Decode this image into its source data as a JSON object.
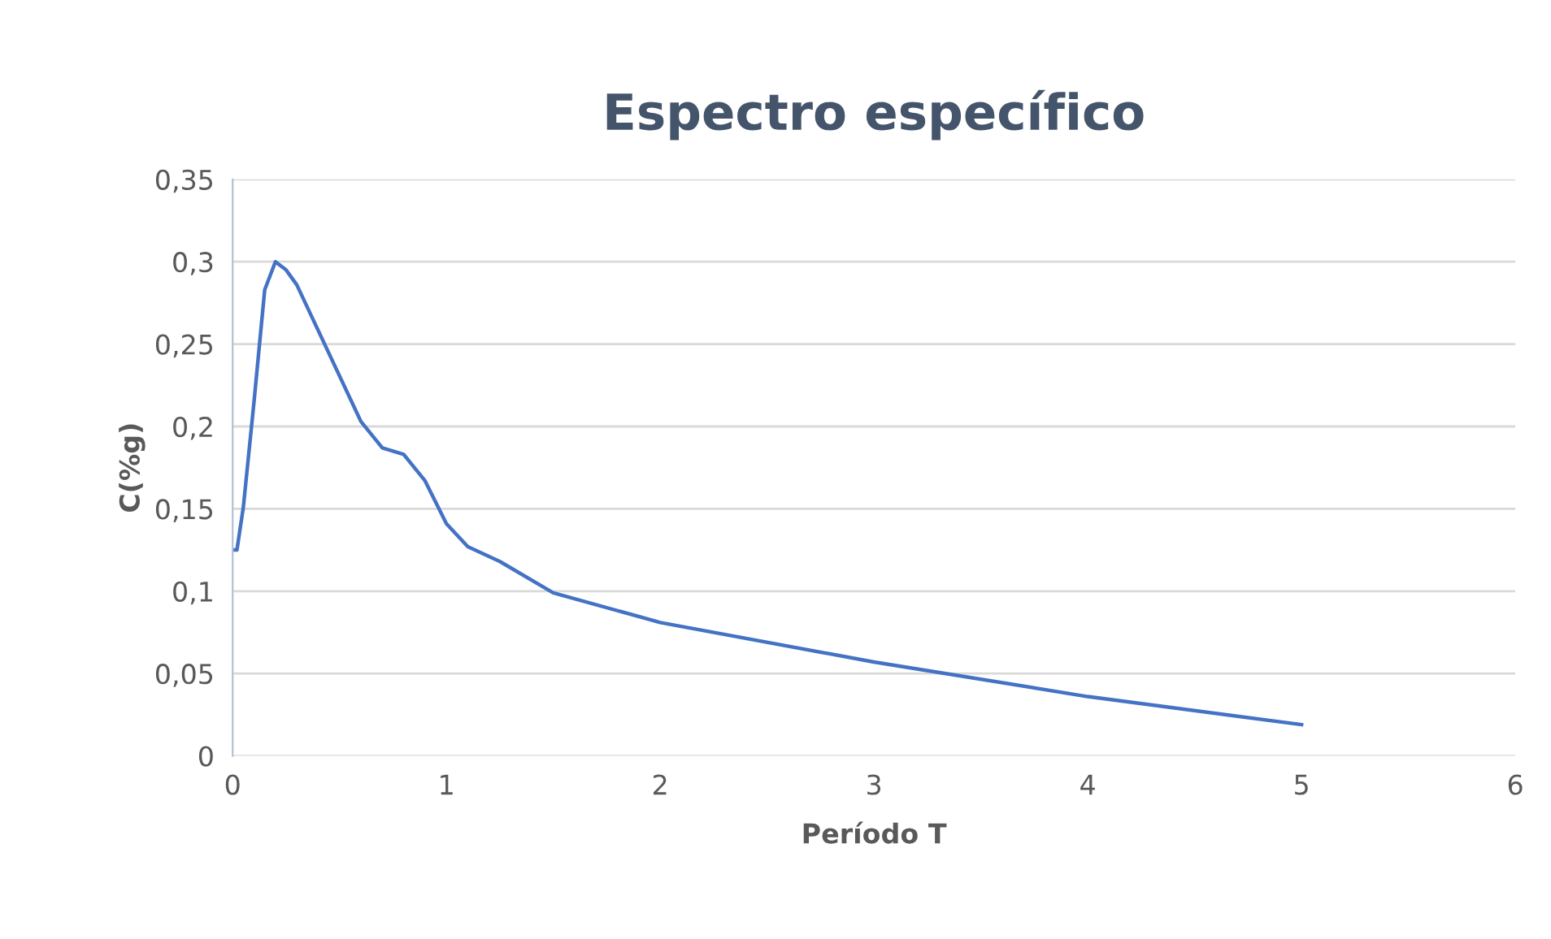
{
  "chart_data": {
    "type": "line",
    "title": "Espectro específico",
    "xlabel": "Período T",
    "ylabel": "C(%g)",
    "x": [
      0,
      0.02,
      0.05,
      0.1,
      0.15,
      0.2,
      0.25,
      0.3,
      0.6,
      0.7,
      0.8,
      0.9,
      1.0,
      1.1,
      1.25,
      1.5,
      2,
      3,
      4,
      5
    ],
    "series": [
      {
        "color": "#4472c4",
        "values": [
          0.125,
          0.125,
          0.151,
          0.215,
          0.283,
          0.3,
          0.295,
          0.286,
          0.203,
          0.187,
          0.183,
          0.167,
          0.141,
          0.127,
          0.118,
          0.099,
          0.081,
          0.057,
          0.036,
          0.019
        ]
      }
    ],
    "xlim": [
      0,
      6
    ],
    "ylim": [
      0,
      0.35
    ],
    "xticks": [
      0,
      1,
      2,
      3,
      4,
      5,
      6
    ],
    "yticks": [
      0,
      {
        "value": 0.05,
        "label": "0,05"
      },
      {
        "value": 0.1,
        "label": "0,1"
      },
      {
        "value": 0.15,
        "label": "0,15"
      },
      {
        "value": 0.2,
        "label": "0,2"
      },
      {
        "value": 0.25,
        "label": "0,25"
      },
      {
        "value": 0.3,
        "label": "0,3"
      },
      {
        "value": 0.35,
        "label": "0,35"
      }
    ],
    "grid": "y",
    "legend": false,
    "marker": "none",
    "line_style": "solid"
  }
}
